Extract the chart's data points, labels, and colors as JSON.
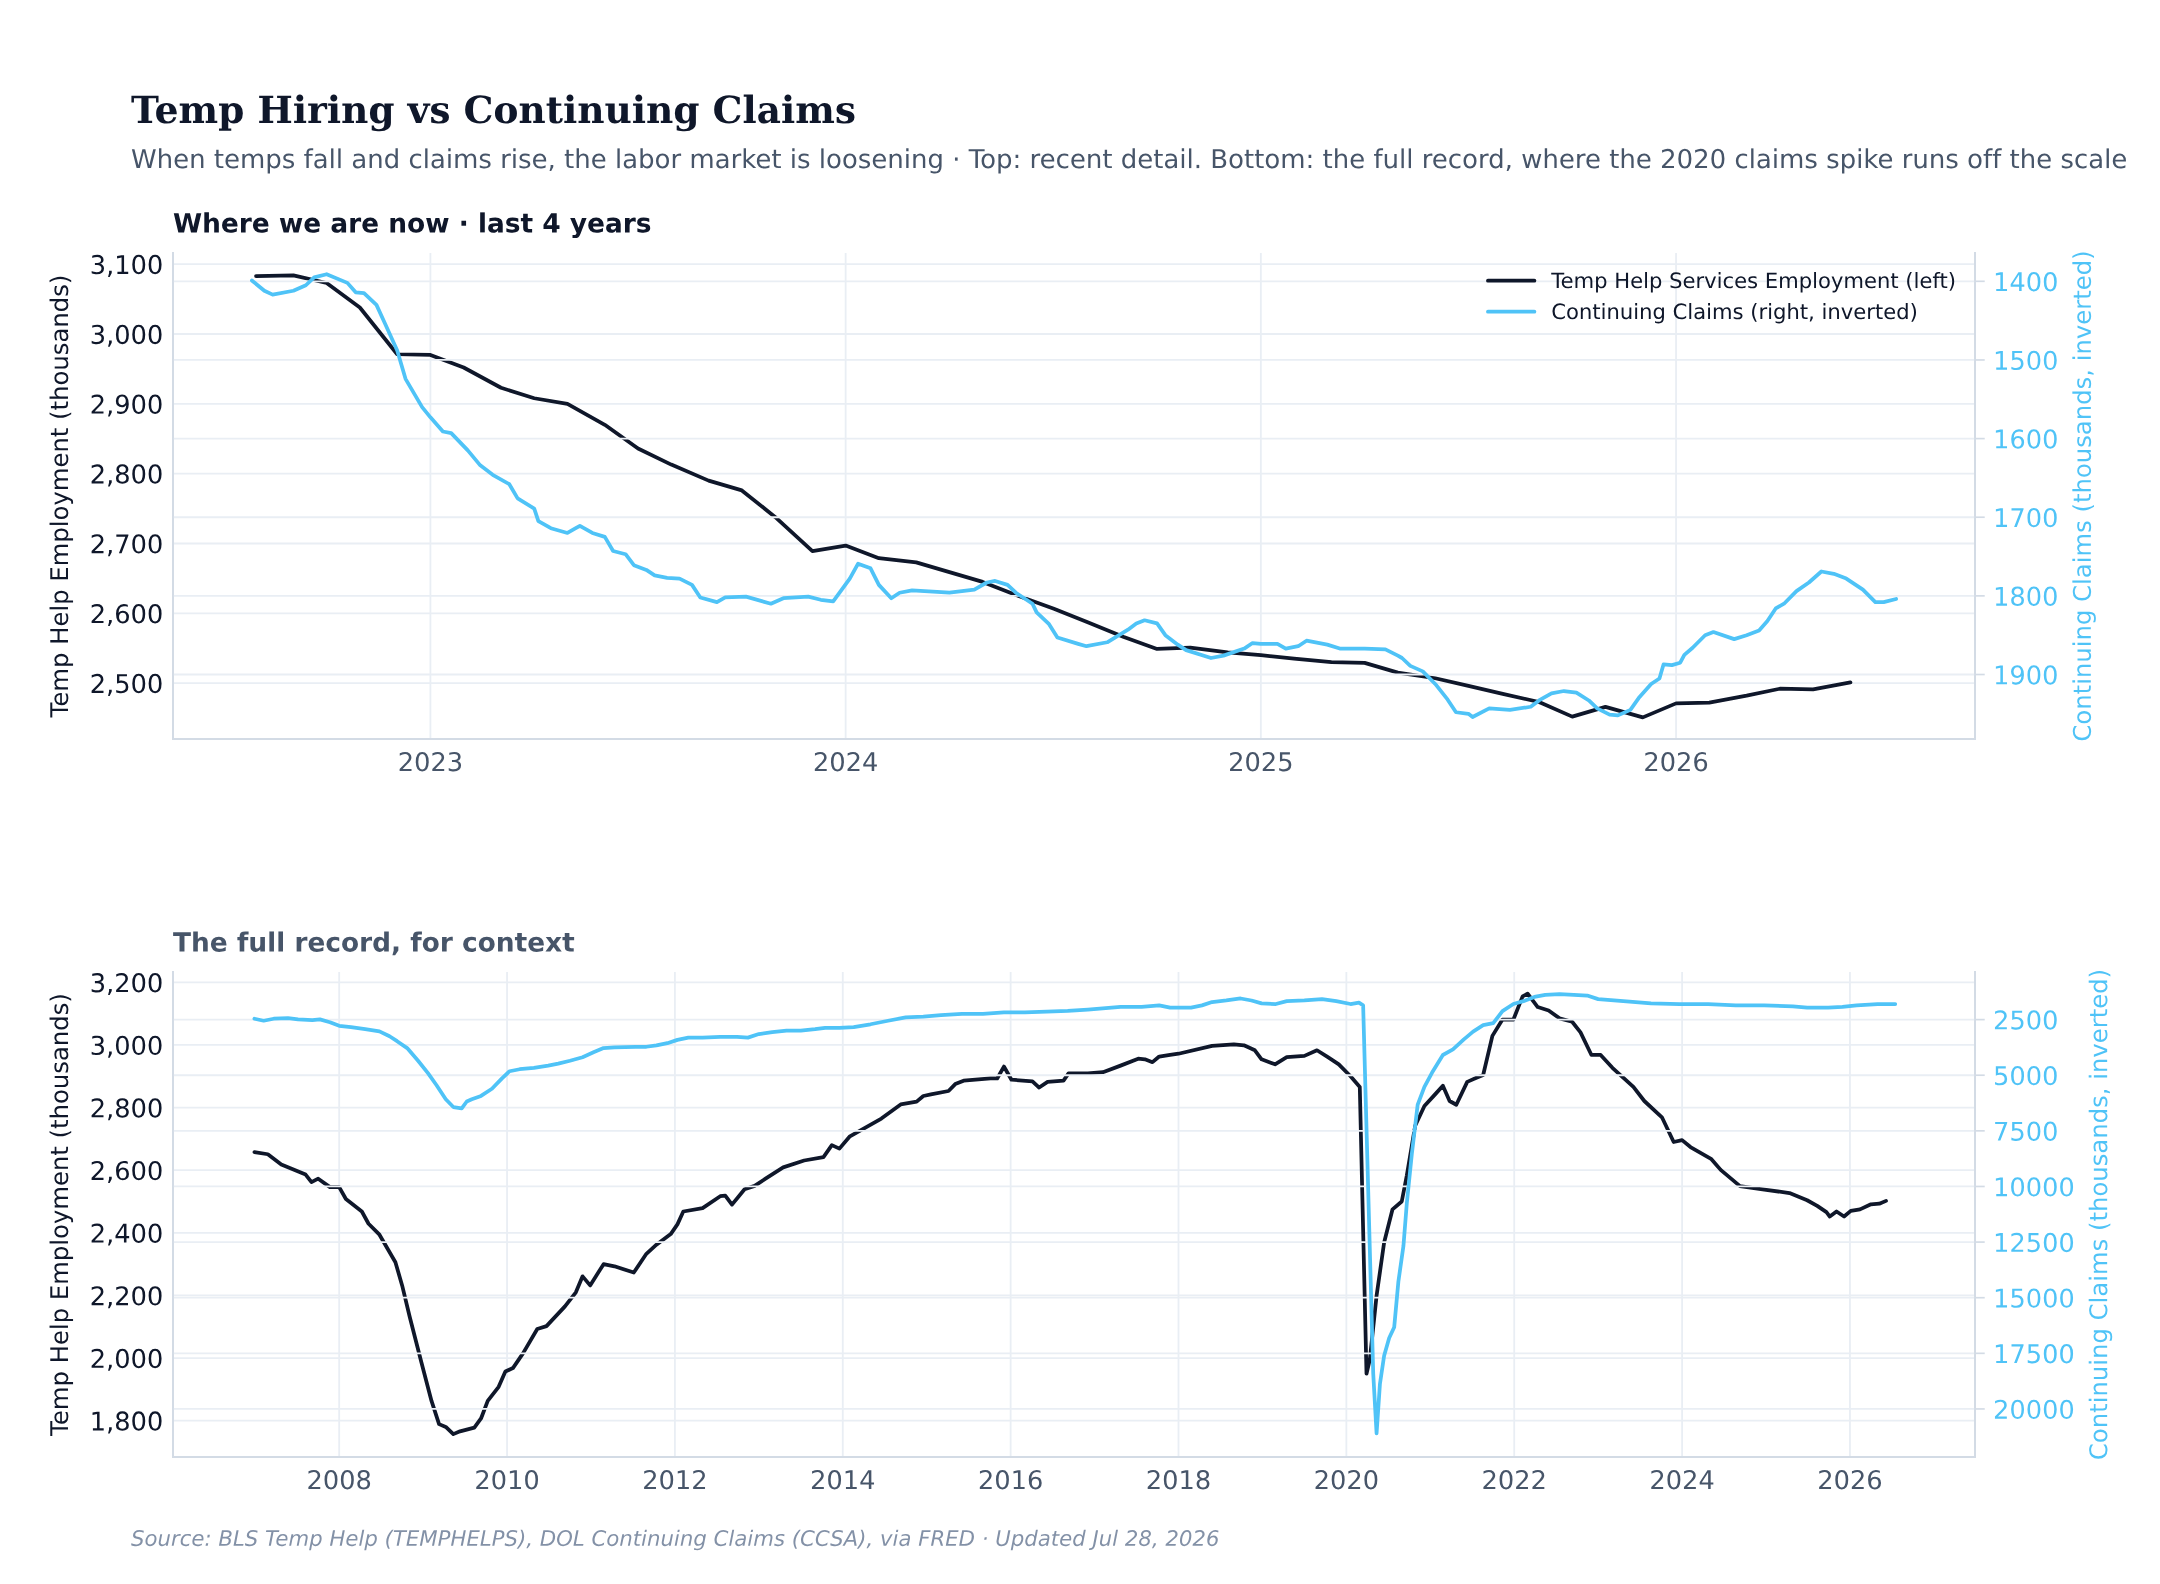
{
  "chart_data": [
    {
      "type": "line",
      "title": "Temp Hiring vs Continuing Claims",
      "subtitle": "When temps fall and claims rise, the labor market is loosening · Top: recent detail. Bottom: the full record, where the 2020 claims spike runs off the scale",
      "annotations": [
        "Where we are now · last 4 years"
      ],
      "ylabel": "Temp Help Employment (thousands)",
      "y2label": "Continuing Claims (thousands, inverted)",
      "xlim": [
        2022.38,
        2026.72
      ],
      "xticks": [
        2023,
        2024,
        2025,
        2026
      ],
      "ylim": [
        2420,
        3116
      ],
      "yticks": [
        {
          "value": 2500,
          "label": "2,500"
        },
        {
          "value": 2600,
          "label": "2,600"
        },
        {
          "value": 2700,
          "label": "2,700"
        },
        {
          "value": 2800,
          "label": "2,800"
        },
        {
          "value": 2900,
          "label": "2,900"
        },
        {
          "value": 3000,
          "label": "3,000"
        },
        {
          "value": 3100,
          "label": "3,100"
        }
      ],
      "y2lim": [
        1982,
        1364
      ],
      "y2ticks": [
        1400,
        1500,
        1600,
        1700,
        1800,
        1900
      ],
      "grid": true,
      "legend": "top right",
      "series": [
        {
          "name": "Temp Help Services Employment (left)",
          "color": "#0f172a",
          "x": [
            2022.58,
            2022.67,
            2022.75,
            2022.83,
            2022.92,
            2023.0,
            2023.08,
            2023.17,
            2023.25,
            2023.33,
            2023.42,
            2023.5,
            2023.58,
            2023.67,
            2023.75,
            2023.83,
            2023.92,
            2024.0,
            2024.08,
            2024.17,
            2024.25,
            2024.33,
            2024.42,
            2024.5,
            2024.58,
            2024.67,
            2024.75,
            2024.83,
            2024.92,
            2025.0,
            2025.08,
            2025.17,
            2025.25,
            2025.33,
            2025.42,
            2025.5,
            2025.58,
            2025.67,
            2025.75,
            2025.83,
            2025.92,
            2026.0,
            2026.08,
            2026.17,
            2026.25,
            2026.33,
            2026.42
          ],
          "values": [
            3083,
            3084,
            3073,
            3038,
            2971,
            2970,
            2952,
            2923,
            2908,
            2900,
            2870,
            2836,
            2813,
            2790,
            2776,
            2738,
            2689,
            2697,
            2679,
            2673,
            2659,
            2645,
            2624,
            2607,
            2588,
            2566,
            2549,
            2551,
            2544,
            2540,
            2535,
            2530,
            2529,
            2515,
            2507,
            2496,
            2485,
            2473,
            2452,
            2466,
            2451,
            2471,
            2472,
            2482,
            2492,
            2491,
            2501
          ]
        },
        {
          "name": "Continuing Claims (right, inverted)",
          "color": "#4fc3f7",
          "axis": "y2",
          "x": [
            2022.57,
            2022.6,
            2022.62,
            2022.67,
            2022.7,
            2022.72,
            2022.75,
            2022.8,
            2022.82,
            2022.84,
            2022.87,
            2022.89,
            2022.92,
            2022.94,
            2022.98,
            2023.0,
            2023.03,
            2023.05,
            2023.09,
            2023.12,
            2023.15,
            2023.19,
            2023.21,
            2023.25,
            2023.26,
            2023.29,
            2023.33,
            2023.35,
            2023.36,
            2023.39,
            2023.42,
            2023.44,
            2023.47,
            2023.49,
            2023.52,
            2023.54,
            2023.57,
            2023.6,
            2023.63,
            2023.65,
            2023.69,
            2023.71,
            2023.76,
            2023.82,
            2023.85,
            2023.91,
            2023.94,
            2023.97,
            2024.01,
            2024.03,
            2024.06,
            2024.08,
            2024.11,
            2024.13,
            2024.16,
            2024.19,
            2024.25,
            2024.31,
            2024.34,
            2024.36,
            2024.39,
            2024.41,
            2024.45,
            2024.46,
            2024.49,
            2024.51,
            2024.56,
            2024.58,
            2024.63,
            2024.68,
            2024.7,
            2024.72,
            2024.75,
            2024.77,
            2024.8,
            2024.82,
            2024.88,
            2024.91,
            2024.96,
            2024.98,
            2025.0,
            2025.04,
            2025.06,
            2025.09,
            2025.11,
            2025.16,
            2025.19,
            2025.25,
            2025.3,
            2025.33,
            2025.34,
            2025.36,
            2025.39,
            2025.42,
            2025.45,
            2025.47,
            2025.5,
            2025.51,
            2025.55,
            2025.6,
            2025.65,
            2025.67,
            2025.7,
            2025.73,
            2025.76,
            2025.79,
            2025.81,
            2025.84,
            2025.86,
            2025.89,
            2025.91,
            2025.94,
            2025.96,
            2025.97,
            2025.99,
            2026.01,
            2026.02,
            2026.04,
            2026.07,
            2026.09,
            2026.14,
            2026.17,
            2026.2,
            2026.22,
            2026.24,
            2026.26,
            2026.29,
            2026.32,
            2026.35,
            2026.38,
            2026.41,
            2026.45,
            2026.48,
            2026.5,
            2026.53
          ],
          "values": [
            1399,
            1412,
            1417,
            1412,
            1405,
            1395,
            1391,
            1402,
            1414,
            1415,
            1430,
            1453,
            1488,
            1524,
            1560,
            1573,
            1591,
            1593,
            1615,
            1634,
            1646,
            1658,
            1676,
            1689,
            1705,
            1714,
            1720,
            1714,
            1711,
            1720,
            1725,
            1743,
            1747,
            1761,
            1767,
            1774,
            1777,
            1778,
            1786,
            1802,
            1808,
            1802,
            1801,
            1810,
            1803,
            1801,
            1805,
            1807,
            1778,
            1759,
            1765,
            1786,
            1803,
            1796,
            1793,
            1794,
            1796,
            1792,
            1783,
            1781,
            1786,
            1796,
            1810,
            1821,
            1836,
            1853,
            1861,
            1864,
            1859,
            1843,
            1835,
            1831,
            1835,
            1850,
            1862,
            1869,
            1879,
            1876,
            1867,
            1860,
            1861,
            1861,
            1867,
            1864,
            1857,
            1862,
            1867,
            1867,
            1868,
            1876,
            1879,
            1889,
            1896,
            1912,
            1932,
            1948,
            1950,
            1954,
            1943,
            1945,
            1941,
            1933,
            1924,
            1921,
            1923,
            1933,
            1943,
            1951,
            1952,
            1945,
            1930,
            1912,
            1905,
            1887,
            1888,
            1885,
            1875,
            1866,
            1850,
            1846,
            1855,
            1850,
            1844,
            1832,
            1816,
            1810,
            1794,
            1783,
            1769,
            1772,
            1778,
            1792,
            1808,
            1808,
            1804
          ]
        }
      ]
    },
    {
      "type": "line",
      "annotations": [
        "The full record, for context",
        "Source: BLS Temp Help (TEMPHELPS), DOL Continuing Claims (CCSA), via FRED · Updated Jul 28, 2026"
      ],
      "ylabel": "Temp Help Employment (thousands)",
      "y2label": "Continuing Claims (thousands, inverted)",
      "xlim": [
        2006.02,
        2027.49
      ],
      "xticks": [
        2008,
        2010,
        2012,
        2014,
        2016,
        2018,
        2020,
        2022,
        2024,
        2026
      ],
      "ylim": [
        1684,
        3233
      ],
      "yticks": [
        {
          "value": 1800,
          "label": "1,800"
        },
        {
          "value": 2000,
          "label": "2,000"
        },
        {
          "value": 2200,
          "label": "2,200"
        },
        {
          "value": 2400,
          "label": "2,400"
        },
        {
          "value": 2600,
          "label": "2,600"
        },
        {
          "value": 2800,
          "label": "2,800"
        },
        {
          "value": 3000,
          "label": "3,000"
        },
        {
          "value": 3200,
          "label": "3,200"
        }
      ],
      "y2lim": [
        22160,
        360
      ],
      "y2ticks": [
        2500,
        5000,
        7500,
        10000,
        12500,
        15000,
        17500,
        20000
      ],
      "grid": true,
      "series": [
        {
          "color": "#0f172a",
          "x": [
            2006.99,
            2007.15,
            2007.31,
            2007.6,
            2007.67,
            2007.75,
            2007.89,
            2008.0,
            2008.08,
            2008.27,
            2008.35,
            2008.48,
            2008.67,
            2008.75,
            2008.84,
            2008.98,
            2009.1,
            2009.19,
            2009.27,
            2009.36,
            2009.44,
            2009.61,
            2009.69,
            2009.77,
            2009.9,
            2009.98,
            2010.07,
            2010.19,
            2010.36,
            2010.47,
            2010.69,
            2010.82,
            2010.9,
            2010.99,
            2011.15,
            2011.28,
            2011.51,
            2011.66,
            2011.78,
            2011.95,
            2012.03,
            2012.1,
            2012.33,
            2012.54,
            2012.6,
            2012.68,
            2012.83,
            2012.95,
            2013.08,
            2013.29,
            2013.54,
            2013.77,
            2013.87,
            2013.96,
            2014.08,
            2014.46,
            2014.69,
            2014.88,
            2014.96,
            2015.05,
            2015.26,
            2015.34,
            2015.44,
            2015.76,
            2015.84,
            2015.92,
            2016.01,
            2016.26,
            2016.34,
            2016.44,
            2016.63,
            2016.69,
            2016.92,
            2017.1,
            2017.31,
            2017.52,
            2017.6,
            2017.69,
            2017.77,
            2017.9,
            2018.0,
            2018.4,
            2018.66,
            2018.78,
            2018.91,
            2018.99,
            2019.15,
            2019.29,
            2019.5,
            2019.65,
            2019.78,
            2019.91,
            2020.05,
            2020.16,
            2020.24,
            2020.28,
            2020.36,
            2020.45,
            2020.55,
            2020.66,
            2020.72,
            2020.82,
            2020.93,
            2021.06,
            2021.15,
            2021.23,
            2021.31,
            2021.44,
            2021.55,
            2021.63,
            2021.74,
            2021.86,
            2021.99,
            2022.1,
            2022.16,
            2022.28,
            2022.41,
            2022.54,
            2022.69,
            2022.79,
            2022.92,
            2023.03,
            2023.17,
            2023.42,
            2023.55,
            2023.76,
            2023.9,
            2024.0,
            2024.1,
            2024.35,
            2024.46,
            2024.69,
            2024.98,
            2025.28,
            2025.49,
            2025.61,
            2025.72,
            2025.76,
            2025.84,
            2025.93,
            2026.01,
            2026.12,
            2026.25,
            2026.35,
            2026.43
          ],
          "values": [
            2658,
            2651,
            2618,
            2586,
            2562,
            2573,
            2546,
            2546,
            2508,
            2468,
            2429,
            2394,
            2306,
            2232,
            2132,
            1986,
            1863,
            1789,
            1780,
            1757,
            1766,
            1778,
            1807,
            1863,
            1908,
            1957,
            1968,
            2015,
            2093,
            2102,
            2165,
            2210,
            2261,
            2232,
            2300,
            2293,
            2273,
            2333,
            2362,
            2396,
            2427,
            2468,
            2479,
            2517,
            2519,
            2490,
            2539,
            2550,
            2573,
            2609,
            2631,
            2642,
            2680,
            2669,
            2707,
            2765,
            2810,
            2819,
            2837,
            2842,
            2853,
            2875,
            2886,
            2893,
            2893,
            2931,
            2889,
            2884,
            2864,
            2882,
            2886,
            2909,
            2909,
            2913,
            2934,
            2956,
            2954,
            2945,
            2963,
            2968,
            2972,
            2997,
            3002,
            2999,
            2983,
            2954,
            2938,
            2961,
            2965,
            2983,
            2961,
            2938,
            2900,
            2866,
            1950,
            1996,
            2199,
            2369,
            2475,
            2500,
            2583,
            2742,
            2805,
            2843,
            2870,
            2821,
            2809,
            2882,
            2895,
            2904,
            3029,
            3081,
            3081,
            3155,
            3164,
            3121,
            3110,
            3085,
            3074,
            3040,
            2968,
            2968,
            2927,
            2866,
            2821,
            2769,
            2690,
            2696,
            2674,
            2635,
            2601,
            2549,
            2538,
            2527,
            2504,
            2486,
            2466,
            2452,
            2468,
            2452,
            2470,
            2475,
            2491,
            2493,
            2502
          ]
        },
        {
          "color": "#4fc3f7",
          "axis": "y2",
          "x": [
            2006.99,
            2007.1,
            2007.22,
            2007.39,
            2007.51,
            2007.68,
            2007.77,
            2007.89,
            2008.0,
            2008.14,
            2008.31,
            2008.48,
            2008.6,
            2008.69,
            2008.81,
            2008.94,
            2009.06,
            2009.16,
            2009.27,
            2009.36,
            2009.46,
            2009.52,
            2009.58,
            2009.69,
            2009.82,
            2009.94,
            2010.03,
            2010.15,
            2010.32,
            2010.49,
            2010.61,
            2010.75,
            2010.9,
            2011.03,
            2011.15,
            2011.28,
            2011.53,
            2011.66,
            2011.78,
            2011.91,
            2012.03,
            2012.16,
            2012.33,
            2012.54,
            2012.74,
            2012.87,
            2013.0,
            2013.16,
            2013.33,
            2013.5,
            2013.67,
            2013.79,
            2013.96,
            2014.13,
            2014.33,
            2014.54,
            2014.75,
            2014.96,
            2015.17,
            2015.42,
            2015.67,
            2015.92,
            2016.17,
            2016.43,
            2016.68,
            2016.92,
            2017.31,
            2017.56,
            2017.77,
            2017.9,
            2018.15,
            2018.28,
            2018.4,
            2018.57,
            2018.74,
            2018.87,
            2018.99,
            2019.16,
            2019.29,
            2019.5,
            2019.71,
            2019.88,
            2020.05,
            2020.15,
            2020.2,
            2020.32,
            2020.36,
            2020.4,
            2020.45,
            2020.51,
            2020.57,
            2020.62,
            2020.68,
            2020.72,
            2020.78,
            2020.85,
            2020.93,
            2021.02,
            2021.15,
            2021.27,
            2021.4,
            2021.51,
            2021.63,
            2021.75,
            2021.86,
            2021.99,
            2022.11,
            2022.24,
            2022.37,
            2022.54,
            2022.71,
            2022.87,
            2023.0,
            2023.3,
            2023.63,
            2023.97,
            2024.31,
            2024.64,
            2024.98,
            2025.32,
            2025.49,
            2025.74,
            2025.91,
            2026.08,
            2026.33,
            2026.54
          ],
          "values": [
            2460,
            2550,
            2460,
            2430,
            2490,
            2520,
            2490,
            2620,
            2780,
            2840,
            2930,
            3030,
            3250,
            3470,
            3780,
            4350,
            4920,
            5450,
            6080,
            6430,
            6490,
            6180,
            6080,
            5930,
            5610,
            5140,
            4820,
            4730,
            4670,
            4570,
            4480,
            4350,
            4190,
            3970,
            3780,
            3750,
            3720,
            3720,
            3660,
            3560,
            3410,
            3310,
            3310,
            3280,
            3280,
            3310,
            3150,
            3060,
            3000,
            3000,
            2930,
            2870,
            2870,
            2840,
            2710,
            2550,
            2400,
            2370,
            2300,
            2240,
            2240,
            2180,
            2180,
            2140,
            2110,
            2050,
            1930,
            1930,
            1860,
            1960,
            1960,
            1860,
            1710,
            1640,
            1550,
            1640,
            1770,
            1800,
            1670,
            1640,
            1580,
            1670,
            1800,
            1740,
            1860,
            18400,
            21100,
            18880,
            17610,
            16810,
            16330,
            14270,
            12680,
            10770,
            8540,
            6320,
            5520,
            4890,
            4090,
            3840,
            3390,
            3040,
            2750,
            2660,
            2120,
            1800,
            1670,
            1480,
            1390,
            1360,
            1390,
            1420,
            1580,
            1670,
            1770,
            1800,
            1800,
            1860,
            1860,
            1900,
            1960,
            1960,
            1930,
            1860,
            1800,
            1800
          ]
        }
      ]
    }
  ]
}
